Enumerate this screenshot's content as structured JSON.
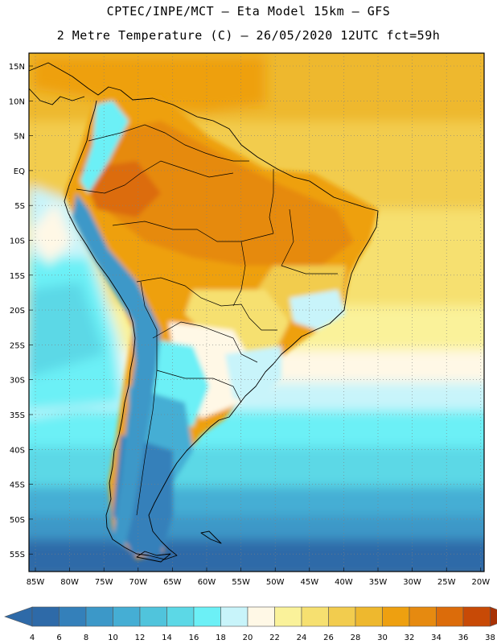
{
  "header": {
    "line1": "CPTEC/INPE/MCT —  Eta Model 15km — GFS",
    "line2": "2 Metre Temperature (C) — 26/05/2020 12UTC fct=59h"
  },
  "map": {
    "lat_labels": [
      "15N",
      "10N",
      "5N",
      "EQ",
      "5S",
      "10S",
      "15S",
      "20S",
      "25S",
      "30S",
      "35S",
      "40S",
      "45S",
      "50S",
      "55S"
    ],
    "lon_labels": [
      "85W",
      "80W",
      "75W",
      "70W",
      "65W",
      "60W",
      "55W",
      "50W",
      "45W",
      "40W",
      "35W",
      "30W",
      "25W",
      "20W"
    ]
  },
  "colorbar": {
    "ticks": [
      "4",
      "6",
      "8",
      "10",
      "12",
      "14",
      "16",
      "18",
      "20",
      "22",
      "24",
      "26",
      "28",
      "30",
      "32",
      "34",
      "36",
      "38"
    ],
    "colors": [
      "#2e6aa8",
      "#3480ba",
      "#3c98c8",
      "#45aed4",
      "#50c4dc",
      "#5cd8e6",
      "#6cf0f6",
      "#c8f4fa",
      "#fff8e6",
      "#faf29a",
      "#f6e070",
      "#f2cc4e",
      "#eeb82e",
      "#eea010",
      "#e68a10",
      "#dc6c0a",
      "#c84a06",
      "#a83204"
    ]
  }
}
